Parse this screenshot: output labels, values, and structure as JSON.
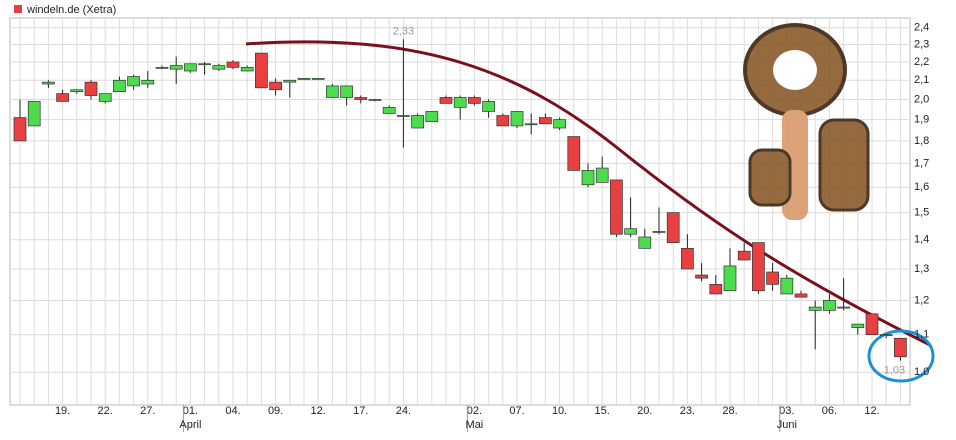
{
  "chart_data": {
    "type": "candlestick",
    "title": "windeln.de (Xetra)",
    "legend_color": "#e84040",
    "up_color": "#4ddc4d",
    "down_color": "#e84040",
    "log_scale": true,
    "grid": true,
    "ylim": [
      0.92,
      2.46
    ],
    "yticks": [
      {
        "value": 1.0,
        "label": "1,0"
      },
      {
        "value": 1.1,
        "label": "1,1"
      },
      {
        "value": 1.2,
        "label": "1,2"
      },
      {
        "value": 1.3,
        "label": "1,3"
      },
      {
        "value": 1.4,
        "label": "1,4"
      },
      {
        "value": 1.5,
        "label": "1,5"
      },
      {
        "value": 1.6,
        "label": "1,6"
      },
      {
        "value": 1.7,
        "label": "1,7"
      },
      {
        "value": 1.8,
        "label": "1,8"
      },
      {
        "value": 1.9,
        "label": "1,9"
      },
      {
        "value": 2.0,
        "label": "2,0"
      },
      {
        "value": 2.1,
        "label": "2,1"
      },
      {
        "value": 2.2,
        "label": "2,2"
      },
      {
        "value": 2.3,
        "label": "2,3"
      },
      {
        "value": 2.4,
        "label": "2,4"
      }
    ],
    "categories": [
      null,
      null,
      null,
      "19.",
      null,
      null,
      "22.",
      null,
      null,
      "27.",
      null,
      null,
      "01.",
      null,
      null,
      "04.",
      null,
      null,
      "09.",
      null,
      null,
      "12.",
      null,
      null,
      "17.",
      null,
      null,
      "24.",
      null,
      null,
      null,
      null,
      "02.",
      null,
      null,
      "07.",
      null,
      null,
      "10.",
      null,
      null,
      "15.",
      null,
      null,
      "20.",
      null,
      null,
      "23.",
      null,
      null,
      "28.",
      null,
      null,
      null,
      "03.",
      null,
      null,
      "06.",
      null,
      null,
      "12.",
      null,
      null
    ],
    "months": [
      null,
      null,
      null,
      null,
      null,
      null,
      null,
      null,
      null,
      null,
      null,
      null,
      "April",
      null,
      null,
      null,
      null,
      null,
      null,
      null,
      null,
      null,
      null,
      null,
      null,
      null,
      null,
      null,
      null,
      null,
      null,
      null,
      "Mai",
      null,
      null,
      null,
      null,
      null,
      null,
      null,
      null,
      null,
      null,
      null,
      null,
      null,
      null,
      null,
      null,
      null,
      null,
      null,
      null,
      null,
      "Juni",
      null,
      null,
      null,
      null,
      null,
      null,
      null,
      null
    ],
    "open": [
      1.91,
      1.87,
      2.08,
      2.03,
      2.04,
      2.09,
      1.99,
      2.04,
      2.07,
      2.08,
      2.17,
      2.16,
      2.15,
      2.19,
      2.16,
      2.2,
      2.15,
      2.25,
      2.09,
      2.09,
      2.11,
      2.11,
      2.01,
      2.01,
      2.01,
      2.0,
      1.93,
      1.92,
      1.86,
      1.89,
      2.01,
      1.96,
      2.01,
      1.94,
      1.92,
      1.87,
      1.88,
      1.91,
      1.86,
      1.82,
      1.61,
      1.62,
      1.63,
      1.42,
      1.37,
      1.43,
      1.5,
      1.37,
      1.28,
      1.25,
      1.23,
      1.36,
      1.39,
      1.29,
      1.22,
      1.22,
      1.17,
      1.17,
      1.18,
      1.12,
      1.16,
      1.1,
      1.09
    ],
    "high": [
      2.0,
      1.99,
      2.1,
      2.05,
      2.05,
      2.1,
      2.03,
      2.12,
      2.13,
      2.15,
      2.18,
      2.23,
      2.19,
      2.2,
      2.19,
      2.21,
      2.18,
      2.25,
      2.11,
      2.1,
      2.11,
      2.11,
      2.08,
      2.07,
      2.02,
      2.0,
      1.97,
      2.33,
      1.93,
      1.94,
      2.02,
      2.02,
      2.02,
      2.0,
      1.93,
      1.94,
      1.93,
      1.93,
      1.91,
      1.82,
      1.7,
      1.73,
      1.63,
      1.56,
      1.44,
      1.52,
      1.5,
      1.42,
      1.32,
      1.28,
      1.37,
      1.39,
      1.39,
      1.32,
      1.28,
      1.23,
      1.2,
      1.22,
      1.27,
      1.13,
      1.16,
      1.1,
      1.09
    ],
    "low": [
      1.8,
      1.87,
      2.06,
      1.99,
      2.03,
      2.0,
      1.98,
      2.04,
      2.05,
      2.06,
      2.16,
      2.08,
      2.14,
      2.13,
      2.15,
      2.16,
      2.15,
      2.06,
      2.02,
      2.01,
      2.11,
      2.11,
      2.01,
      1.97,
      1.98,
      1.99,
      1.93,
      1.77,
      1.86,
      1.89,
      1.99,
      1.9,
      1.97,
      1.91,
      1.87,
      1.86,
      1.83,
      1.88,
      1.85,
      1.67,
      1.6,
      1.62,
      1.41,
      1.41,
      1.37,
      1.42,
      1.39,
      1.3,
      1.26,
      1.22,
      1.23,
      1.33,
      1.22,
      1.23,
      1.22,
      1.21,
      1.06,
      1.16,
      1.17,
      1.1,
      1.1,
      1.09,
      1.03
    ],
    "close": [
      1.8,
      1.99,
      2.09,
      1.99,
      2.05,
      2.02,
      2.03,
      2.1,
      2.12,
      2.1,
      2.17,
      2.18,
      2.19,
      2.19,
      2.18,
      2.17,
      2.17,
      2.06,
      2.05,
      2.1,
      2.11,
      2.11,
      2.07,
      2.07,
      2.0,
      2.0,
      1.96,
      1.92,
      1.92,
      1.94,
      1.98,
      2.01,
      1.98,
      1.99,
      1.87,
      1.94,
      1.88,
      1.88,
      1.9,
      1.67,
      1.67,
      1.68,
      1.42,
      1.44,
      1.41,
      1.43,
      1.39,
      1.3,
      1.27,
      1.22,
      1.31,
      1.33,
      1.23,
      1.25,
      1.27,
      1.21,
      1.18,
      1.2,
      1.18,
      1.13,
      1.1,
      1.1,
      1.04
    ],
    "max_label": {
      "value": 2.33,
      "label": "2,33"
    },
    "min_label": {
      "value": 1.03,
      "label": "1,03"
    }
  }
}
